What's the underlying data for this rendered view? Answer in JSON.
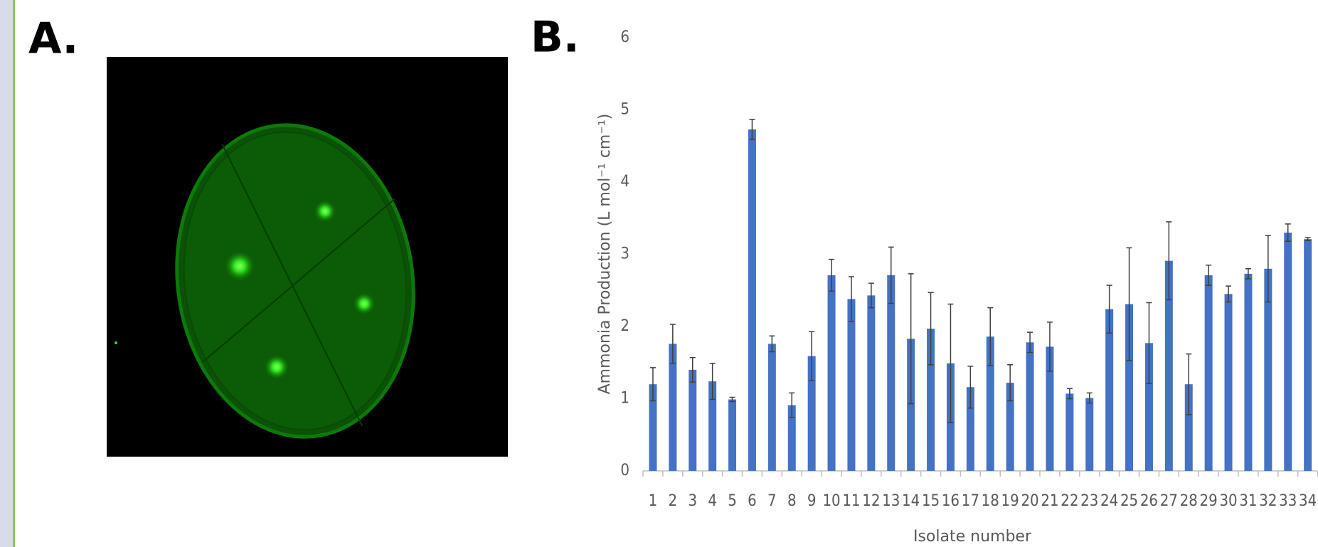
{
  "panels": {
    "a_label": "A.",
    "b_label": "B."
  },
  "chart_data": {
    "type": "bar",
    "y_label": "Ammonia Production (L mol⁻¹ cm⁻¹)",
    "x_label": "Isolate number",
    "categories": [
      "1",
      "2",
      "3",
      "4",
      "5",
      "6",
      "7",
      "8",
      "9",
      "10",
      "11",
      "12",
      "13",
      "14",
      "15",
      "16",
      "17",
      "18",
      "19",
      "20",
      "21",
      "22",
      "23",
      "24",
      "25",
      "26",
      "27",
      "28",
      "29",
      "30",
      "31",
      "32",
      "33",
      "34"
    ],
    "values": [
      1.2,
      1.76,
      1.4,
      1.24,
      0.99,
      4.73,
      1.76,
      0.91,
      1.59,
      2.71,
      2.38,
      2.43,
      2.71,
      1.83,
      1.97,
      1.49,
      1.16,
      1.86,
      1.22,
      1.78,
      1.72,
      1.07,
      1.01,
      2.24,
      2.31,
      1.77,
      2.91,
      1.2,
      2.71,
      2.45,
      2.73,
      2.8,
      3.3,
      3.21
    ],
    "errors": [
      0.23,
      0.27,
      0.17,
      0.25,
      0.03,
      0.14,
      0.11,
      0.17,
      0.34,
      0.22,
      0.31,
      0.17,
      0.39,
      0.9,
      0.5,
      0.82,
      0.29,
      0.4,
      0.25,
      0.14,
      0.34,
      0.07,
      0.07,
      0.33,
      0.78,
      0.56,
      0.54,
      0.42,
      0.14,
      0.11,
      0.07,
      0.46,
      0.12,
      0.02
    ],
    "color": "#4472c4",
    "error_color": "#404040",
    "ylim": [
      0,
      6
    ],
    "yticks": [
      0,
      1,
      2,
      3,
      4,
      5,
      6
    ],
    "grid": false
  }
}
